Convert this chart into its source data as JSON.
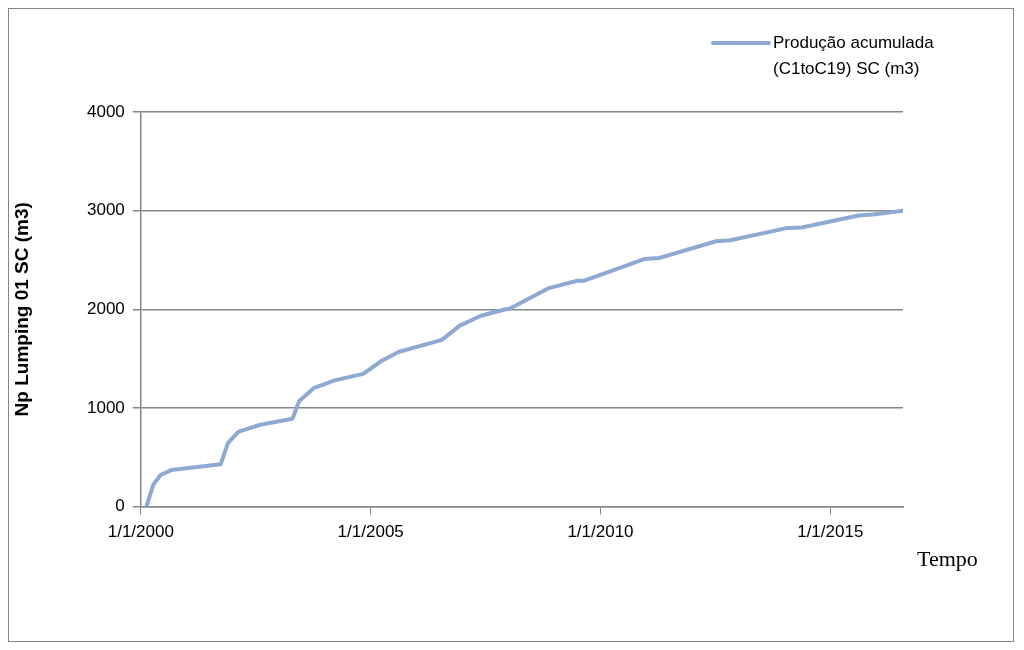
{
  "chart_data": {
    "type": "line",
    "xlabel": "Tempo",
    "ylabel": "Np Lumping 01 SC (m3)",
    "x": [
      "2000-02-15",
      "2000-04-08",
      "2000-06-06",
      "2000-08-29",
      "2001-09-27",
      "2001-11-24",
      "2002-02-17",
      "2002-08-07",
      "2003-04-20",
      "2003-06-13",
      "2003-10-05",
      "2004-03-20",
      "2004-11-02",
      "2005-03-25",
      "2005-08-15",
      "2006-05-27",
      "2006-07-20",
      "2006-12-10",
      "2007-05-27",
      "2007-12-10",
      "2008-01-10",
      "2008-11-17",
      "2009-07-01",
      "2009-08-25",
      "2010-12-20",
      "2011-04-12",
      "2012-07-08",
      "2012-10-30",
      "2014-01-26",
      "2014-05-19",
      "2015-08-15",
      "2015-12-05",
      "2016-07-31"
    ],
    "series": [
      {
        "name": "Produção acumulada (C1toC19) SC (m3)",
        "color": "#8eaad3",
        "values": [
          0,
          220,
          320,
          370,
          430,
          645,
          760,
          830,
          890,
          1070,
          1200,
          1280,
          1345,
          1475,
          1570,
          1670,
          1690,
          1835,
          1935,
          2000,
          2005,
          2215,
          2290,
          2290,
          2510,
          2520,
          2690,
          2700,
          2825,
          2830,
          2950,
          2960,
          3000
        ]
      }
    ],
    "xlim": [
      "2000-01-01",
      "2016-08-01"
    ],
    "xticks": [
      {
        "value": "2000-01-01",
        "label": "1/1/2000"
      },
      {
        "value": "2005-01-01",
        "label": "1/1/2005"
      },
      {
        "value": "2010-01-01",
        "label": "1/1/2010"
      },
      {
        "value": "2015-01-01",
        "label": "1/1/2015"
      }
    ],
    "ylim": [
      0,
      4000
    ],
    "yticks": [
      0,
      1000,
      2000,
      3000,
      4000
    ],
    "grid": "y",
    "legend": "top right",
    "marker": "none",
    "line_style": "solid"
  }
}
